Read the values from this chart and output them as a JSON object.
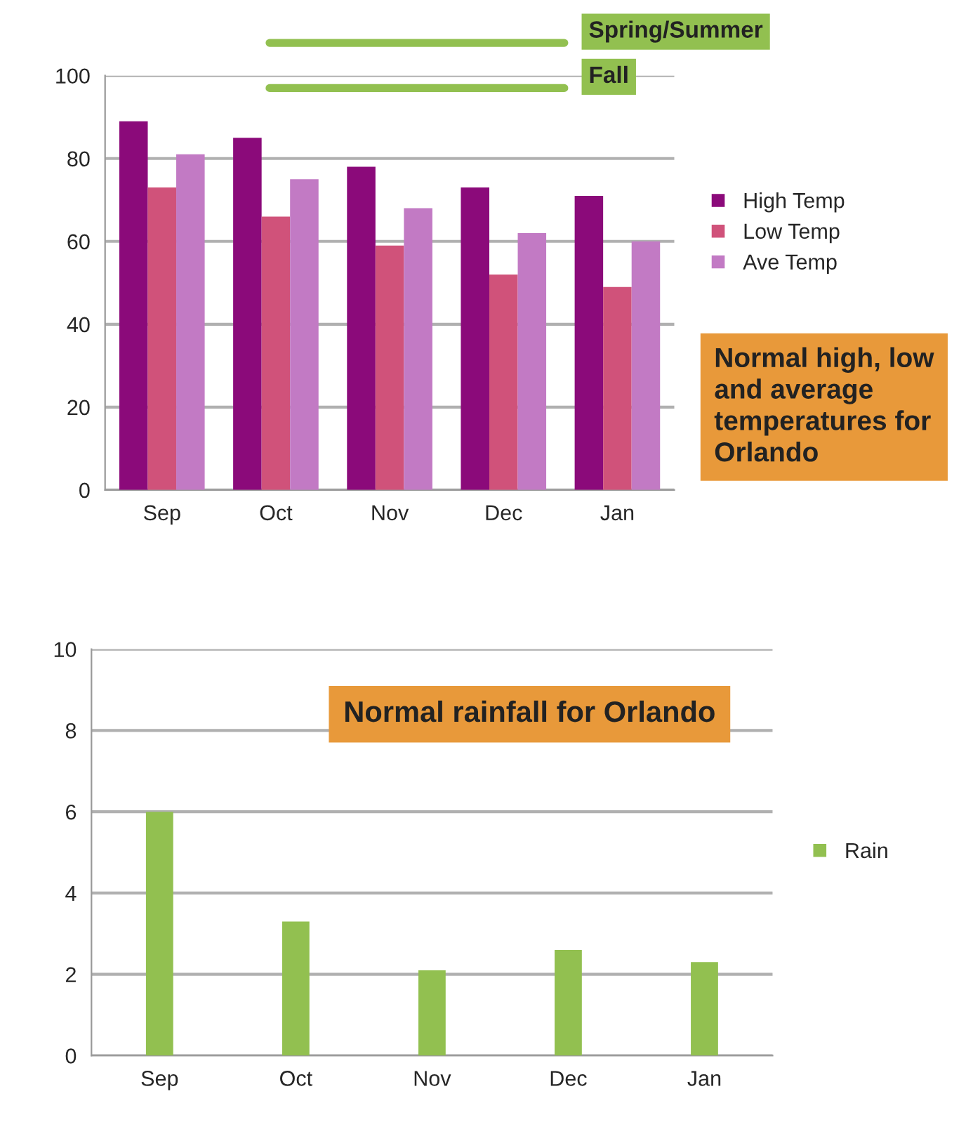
{
  "chart_data": [
    {
      "type": "bar",
      "categories": [
        "Sep",
        "Oct",
        "Nov",
        "Dec",
        "Jan"
      ],
      "series": [
        {
          "name": "High Temp",
          "color": "#8b0a7a",
          "values": [
            89,
            85,
            78,
            73,
            71
          ]
        },
        {
          "name": "Low Temp",
          "color": "#d0527a",
          "values": [
            73,
            66,
            59,
            52,
            49
          ]
        },
        {
          "name": "Ave Temp",
          "color": "#c27ac4",
          "values": [
            81,
            75,
            68,
            62,
            60
          ]
        }
      ],
      "ylim": [
        0,
        100
      ],
      "yticks": [
        0,
        20,
        40,
        60,
        80,
        100
      ],
      "grid": "y",
      "legend": "right",
      "annotations": [
        "Spring/Summer",
        "Fall",
        "Normal high, low and average temperatures for Orlando"
      ]
    },
    {
      "type": "bar",
      "title": "Normal rainfall for Orlando",
      "categories": [
        "Sep",
        "Oct",
        "Nov",
        "Dec",
        "Jan"
      ],
      "series": [
        {
          "name": "Rain",
          "color": "#92c050",
          "values": [
            6.0,
            3.3,
            2.1,
            2.6,
            2.3
          ]
        }
      ],
      "ylim": [
        0,
        10
      ],
      "yticks": [
        0,
        2,
        4,
        6,
        8,
        10
      ],
      "grid": "y",
      "legend": "right"
    }
  ]
}
